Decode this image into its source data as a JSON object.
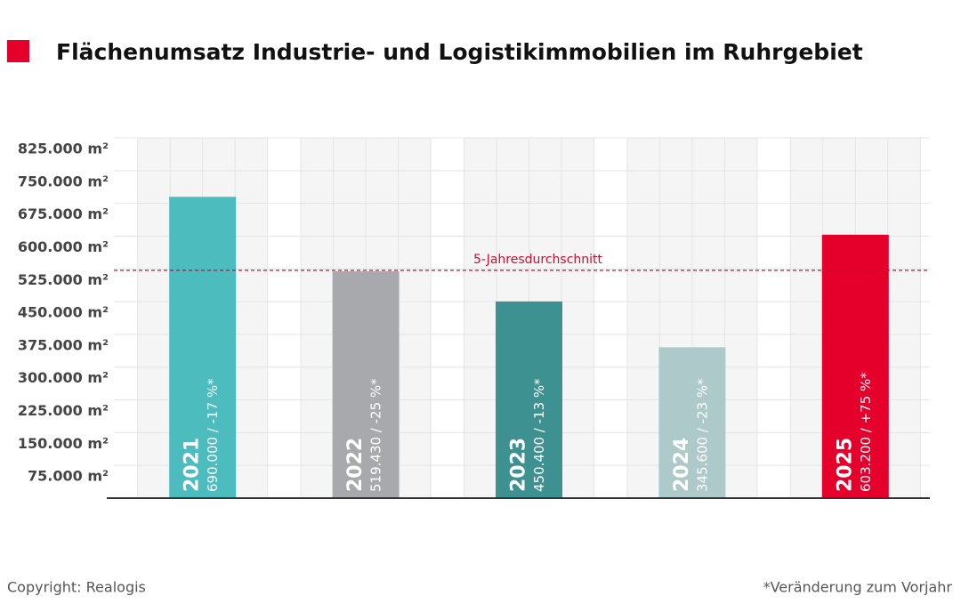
{
  "chart_data": {
    "type": "bar",
    "title": "Flächenumsatz Industrie- und Logistikimmobilien im Ruhrgebiet",
    "categories": [
      "2021",
      "2022",
      "2023",
      "2024",
      "2025"
    ],
    "values": [
      690000,
      519430,
      450400,
      345600,
      603200
    ],
    "value_labels": [
      "690.000 / -17 %*",
      "519.430 / -25 %*",
      "450.400 / -13 %*",
      "345.600 / -23 %*",
      "603.200 / +75 %*"
    ],
    "colors": [
      "#4dbcbf",
      "#a7a9ad",
      "#3d9190",
      "#aec9c9",
      "#e4002b"
    ],
    "ylim": [
      0,
      825000
    ],
    "yticks": [
      {
        "value": 75000,
        "label": "75.000 m²"
      },
      {
        "value": 150000,
        "label": "150.000 m²"
      },
      {
        "value": 225000,
        "label": "225.000 m²"
      },
      {
        "value": 300000,
        "label": "300.000 m²"
      },
      {
        "value": 375000,
        "label": "375.000 m²"
      },
      {
        "value": 450000,
        "label": "450.000 m²"
      },
      {
        "value": 525000,
        "label": "525.000 m²"
      },
      {
        "value": 600000,
        "label": "600.000 m²"
      },
      {
        "value": 675000,
        "label": "675.000 m²"
      },
      {
        "value": 750000,
        "label": "750.000 m²"
      },
      {
        "value": 825000,
        "label": "825.000 m²"
      }
    ],
    "grid": true,
    "reference_line": {
      "value": 521726,
      "label": "5-Jahresdurchschnitt",
      "color": "#c8102e"
    },
    "footer_left": "Copyright: Realogis",
    "footer_right": "*Veränderung zum Vorjahr"
  }
}
